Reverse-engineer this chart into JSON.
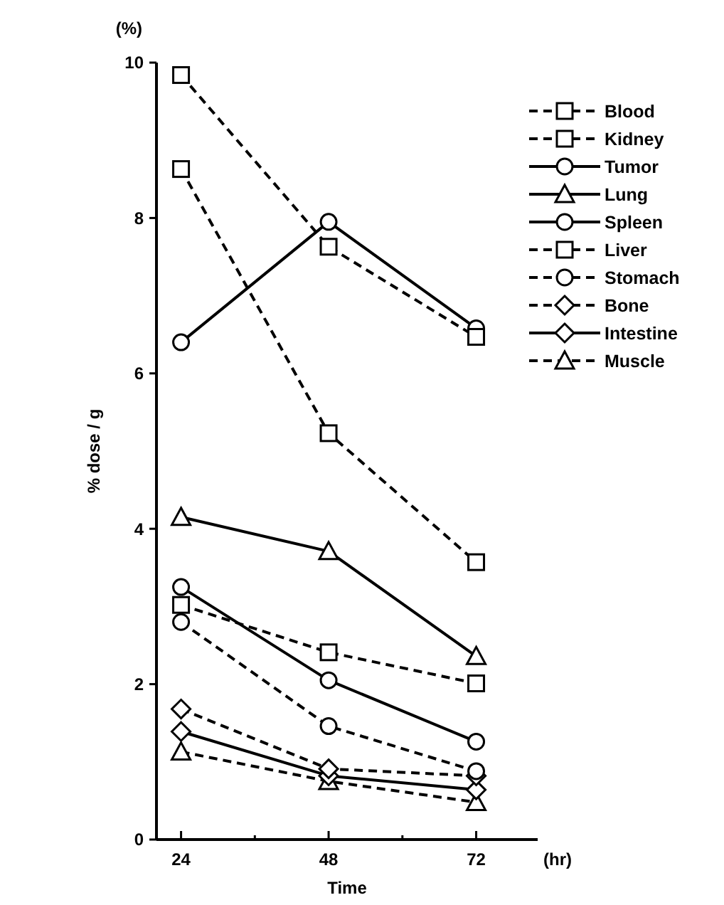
{
  "chart_data": {
    "type": "line",
    "xlabel": "Time",
    "ylabel": "% dose / g",
    "annotations": [
      "(%)",
      "(hr)"
    ],
    "x": [
      24,
      48,
      72
    ],
    "xlim": [
      20,
      82
    ],
    "xticks": [
      24,
      {
        "value": 36,
        "label": null
      },
      48,
      {
        "value": 60,
        "label": null
      },
      72
    ],
    "ylim": [
      0,
      10
    ],
    "yticks": [
      0,
      2,
      4,
      6,
      8,
      10
    ],
    "grid": false,
    "legend": "top right",
    "series": [
      {
        "name": "Blood",
        "color": "#000000",
        "marker": "square",
        "line_style": "dashed",
        "values": [
          9.84,
          7.63,
          6.47
        ]
      },
      {
        "name": "Kidney",
        "color": "#000000",
        "marker": "square",
        "line_style": "dashed",
        "values": [
          8.63,
          5.23,
          3.57
        ]
      },
      {
        "name": "Tumor",
        "color": "#000000",
        "marker": "circle",
        "line_style": "solid",
        "values": [
          6.4,
          7.95,
          6.58
        ]
      },
      {
        "name": "Lung",
        "color": "#000000",
        "marker": "triangle",
        "line_style": "solid",
        "values": [
          4.15,
          3.71,
          2.36
        ]
      },
      {
        "name": "Spleen",
        "color": "#000000",
        "marker": "circle",
        "line_style": "solid",
        "values": [
          3.25,
          2.05,
          1.26
        ]
      },
      {
        "name": "Liver",
        "color": "#000000",
        "marker": "square",
        "line_style": "dashed",
        "values": [
          3.02,
          2.41,
          2.01
        ]
      },
      {
        "name": "Stomach",
        "color": "#000000",
        "marker": "circle",
        "line_style": "dashed",
        "values": [
          2.8,
          1.46,
          0.88
        ]
      },
      {
        "name": "Bone",
        "color": "#000000",
        "marker": "diamond",
        "line_style": "dashed",
        "values": [
          1.68,
          0.91,
          0.82
        ]
      },
      {
        "name": "Intestine",
        "color": "#000000",
        "marker": "diamond",
        "line_style": "solid",
        "values": [
          1.39,
          0.82,
          0.64
        ]
      },
      {
        "name": "Muscle",
        "color": "#000000",
        "marker": "triangle",
        "line_style": "dashed",
        "values": [
          1.13,
          0.75,
          0.48
        ]
      }
    ]
  }
}
